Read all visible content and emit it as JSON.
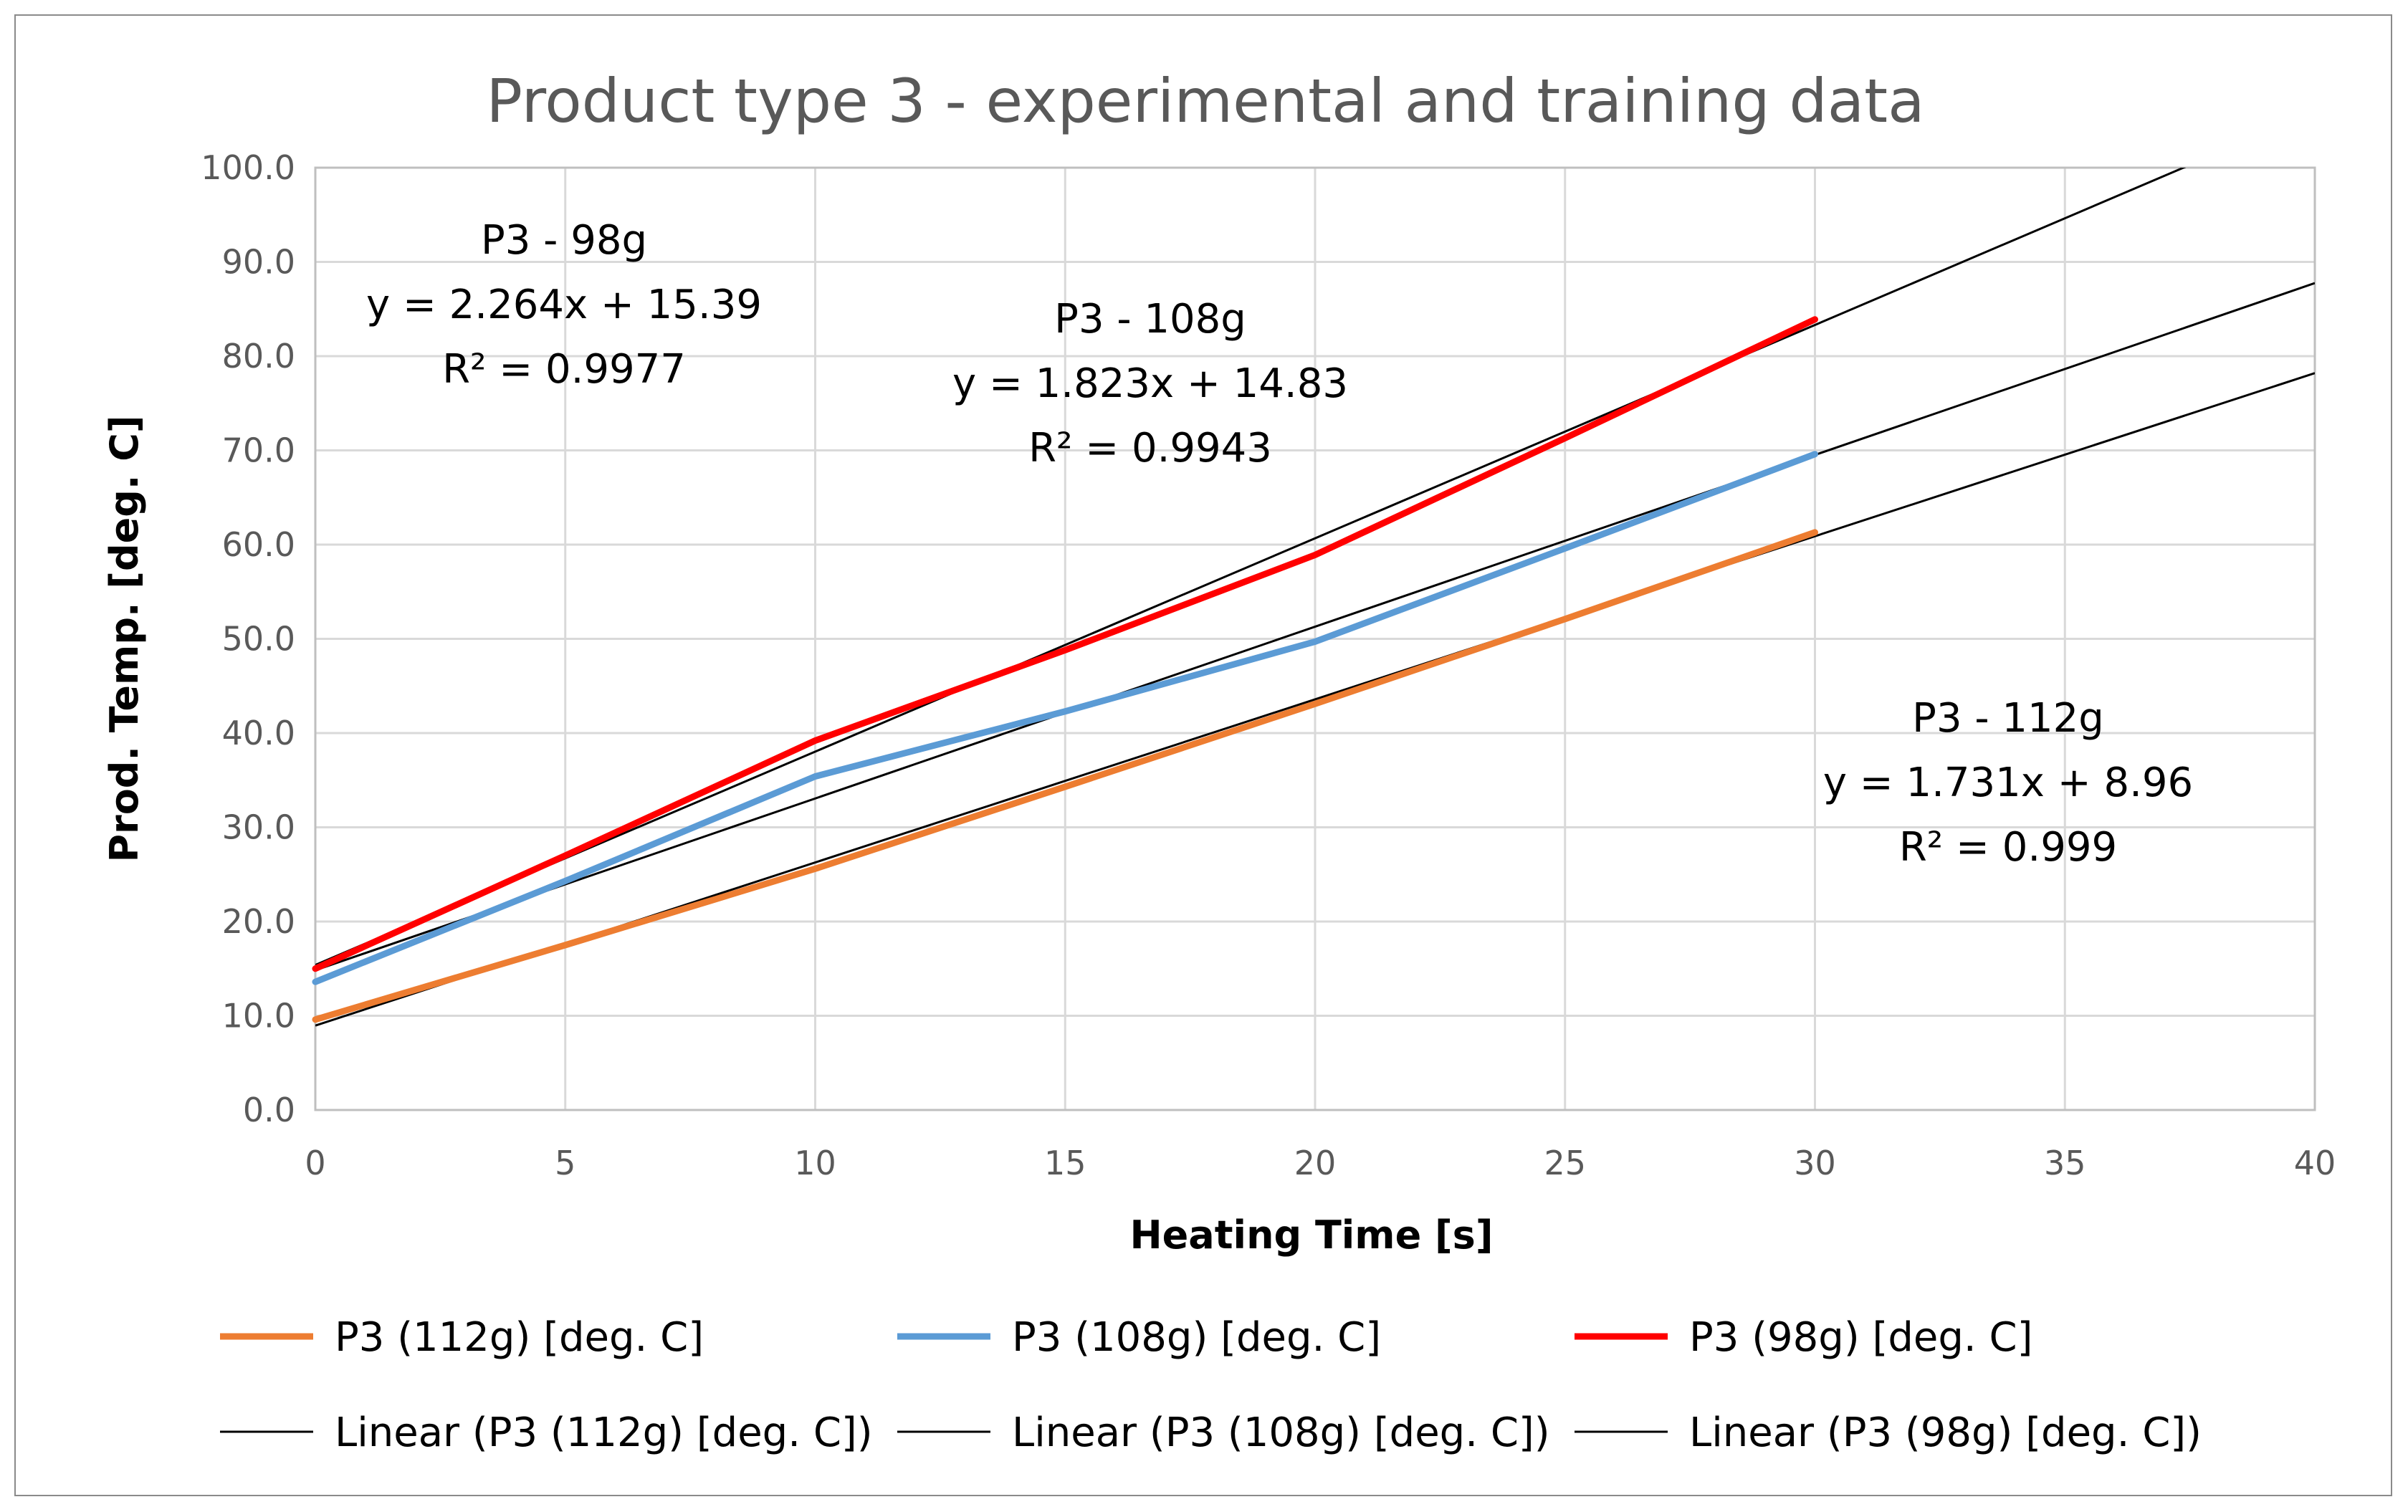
{
  "chart_data": {
    "type": "line",
    "title": "Product type 3 - experimental and training data",
    "xlabel": "Heating Time [s]",
    "ylabel": "Prod. Temp. [deg. C]",
    "xlim": [
      0,
      40
    ],
    "ylim": [
      0,
      100
    ],
    "x_ticks": [
      "0",
      "5",
      "10",
      "15",
      "20",
      "25",
      "30",
      "35",
      "40"
    ],
    "y_ticks": [
      "0.0",
      "10.0",
      "20.0",
      "30.0",
      "40.0",
      "50.0",
      "60.0",
      "70.0",
      "80.0",
      "90.0",
      "100.0"
    ],
    "grid": true,
    "legend_position": "bottom",
    "series": [
      {
        "name": "P3 (112g) [deg. C]",
        "color": "#ED7D31",
        "x": [
          0,
          5,
          10,
          15,
          20,
          25,
          30
        ],
        "values": [
          9.6,
          17.5,
          25.6,
          34.3,
          43.1,
          52.1,
          61.3
        ]
      },
      {
        "name": "P3 (108g) [deg. C]",
        "color": "#5B9BD5",
        "x": [
          0,
          5,
          10,
          15,
          20,
          25,
          30
        ],
        "values": [
          13.6,
          24.3,
          35.4,
          42.3,
          49.7,
          59.6,
          69.6
        ]
      },
      {
        "name": "P3 (98g) [deg. C]",
        "color": "#FF0000",
        "x": [
          0,
          5,
          10,
          15,
          20,
          25,
          30
        ],
        "values": [
          15.0,
          27.0,
          39.2,
          48.8,
          58.9,
          71.3,
          83.9
        ]
      }
    ],
    "trendlines": [
      {
        "name": "Linear (P3 (112g) [deg. C])",
        "slope": 1.731,
        "intercept": 8.96,
        "color": "#000000"
      },
      {
        "name": "Linear (P3 (108g) [deg. C])",
        "slope": 1.823,
        "intercept": 14.83,
        "color": "#000000"
      },
      {
        "name": "Linear (P3 (98g) [deg. C])",
        "slope": 2.264,
        "intercept": 15.39,
        "color": "#000000"
      }
    ],
    "annotations": [
      {
        "lines": [
          "P3 - 98g",
          "y = 2.264x + 15.39",
          "R² = 0.9977"
        ]
      },
      {
        "lines": [
          "P3 - 108g",
          "y = 1.823x + 14.83",
          "R² = 0.9943"
        ]
      },
      {
        "lines": [
          "P3 - 112g",
          "y = 1.731x + 8.96",
          "R² = 0.999"
        ]
      }
    ]
  }
}
